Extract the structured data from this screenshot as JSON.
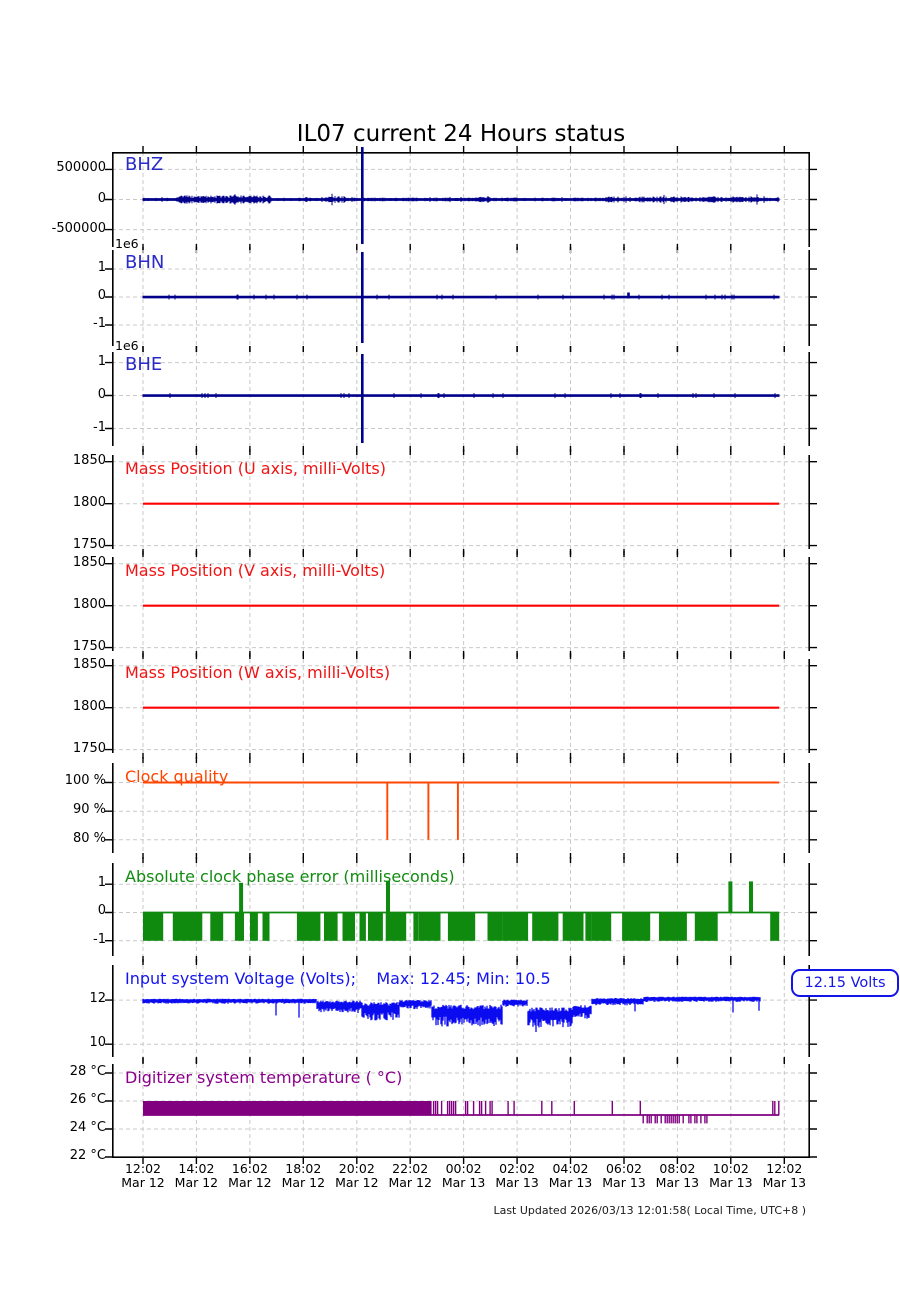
{
  "page": {
    "title": "IL07 current 24 Hours status",
    "footer": "Last Updated 2026/03/13 12:01:58( Local Time, UTC+8 )"
  },
  "badge": {
    "label": "12.15 Volts"
  },
  "chart_data": {
    "type": "line",
    "title": "IL07 current 24 Hours status",
    "station": "IL07",
    "time_span": {
      "start": "12:02 Mar 12",
      "end": "12:02 Mar 13",
      "hours": 24
    },
    "grid": true,
    "x_ticks": [
      {
        "time": "12:02",
        "date": "Mar 12"
      },
      {
        "time": "14:02",
        "date": "Mar 12"
      },
      {
        "time": "16:02",
        "date": "Mar 12"
      },
      {
        "time": "18:02",
        "date": "Mar 12"
      },
      {
        "time": "20:02",
        "date": "Mar 12"
      },
      {
        "time": "22:02",
        "date": "Mar 12"
      },
      {
        "time": "00:02",
        "date": "Mar 13"
      },
      {
        "time": "02:02",
        "date": "Mar 13"
      },
      {
        "time": "04:02",
        "date": "Mar 13"
      },
      {
        "time": "06:02",
        "date": "Mar 13"
      },
      {
        "time": "08:02",
        "date": "Mar 13"
      },
      {
        "time": "10:02",
        "date": "Mar 13"
      },
      {
        "time": "12:02",
        "date": "Mar 13"
      }
    ],
    "panels": [
      {
        "id": "bhz",
        "title": "BHZ",
        "title_color": "#2a2ac8",
        "color": "#00008b",
        "ylim": [
          -790000,
          790000
        ],
        "yticks": [
          {
            "v": 500000,
            "label": "500000"
          },
          {
            "v": 0,
            "label": "0"
          },
          {
            "v": -500000,
            "label": "-500000"
          }
        ],
        "series": {
          "kind": "seismic",
          "noise_amp": 22000,
          "thick_regions": [
            [
              0.05,
              0.2,
              48000
            ],
            [
              0.285,
              0.315,
              40000
            ],
            [
              0.52,
              0.545,
              34000
            ],
            [
              0.72,
              0.96,
              36000
            ]
          ],
          "spikes": [
            {
              "t": 0.342,
              "full": true
            }
          ]
        }
      },
      {
        "id": "bhn",
        "title": "BHN",
        "title_color": "#2a2ac8",
        "color": "#00008b",
        "offset_label": "1e6",
        "ylim": [
          -1750000,
          1680000
        ],
        "yticks": [
          {
            "v": 1000000,
            "label": "1"
          },
          {
            "v": 0,
            "label": "0"
          },
          {
            "v": -1000000,
            "label": "-1"
          }
        ],
        "series": {
          "kind": "seismic",
          "noise_amp": 26000,
          "thick_regions": [],
          "spikes": [
            {
              "t": 0.342,
              "full": true
            },
            {
              "t": 0.757,
              "amp": 160000
            }
          ]
        }
      },
      {
        "id": "bhe",
        "title": "BHE",
        "title_color": "#2a2ac8",
        "color": "#00008b",
        "offset_label": "1e6",
        "ylim": [
          -1530000,
          1320000
        ],
        "yticks": [
          {
            "v": 1000000,
            "label": "1"
          },
          {
            "v": 0,
            "label": "0"
          },
          {
            "v": -1000000,
            "label": "-1"
          }
        ],
        "series": {
          "kind": "seismic",
          "noise_amp": 24000,
          "thick_regions": [],
          "spikes": [
            {
              "t": 0.342,
              "full": true
            }
          ]
        }
      },
      {
        "id": "mass-u",
        "title": "Mass Position (U axis, milli-Volts)",
        "title_color": "#f01414",
        "color": "#ff0000",
        "ylim": [
          1746,
          1858
        ],
        "yticks": [
          {
            "v": 1850,
            "label": "1850"
          },
          {
            "v": 1800,
            "label": "1800"
          },
          {
            "v": 1750,
            "label": "1750"
          }
        ],
        "series": {
          "kind": "const",
          "value": 1800
        }
      },
      {
        "id": "mass-v",
        "title": "Mass Position (V axis, milli-Volts)",
        "title_color": "#f01414",
        "color": "#ff0000",
        "ylim": [
          1746,
          1858
        ],
        "yticks": [
          {
            "v": 1850,
            "label": "1850"
          },
          {
            "v": 1800,
            "label": "1800"
          },
          {
            "v": 1750,
            "label": "1750"
          }
        ],
        "series": {
          "kind": "const",
          "value": 1800
        }
      },
      {
        "id": "mass-w",
        "title": "Mass Position (W axis, milli-Volts)",
        "title_color": "#f01414",
        "color": "#ff0000",
        "ylim": [
          1746,
          1858
        ],
        "yticks": [
          {
            "v": 1850,
            "label": "1850"
          },
          {
            "v": 1800,
            "label": "1800"
          },
          {
            "v": 1750,
            "label": "1750"
          }
        ],
        "series": {
          "kind": "const",
          "value": 1800
        }
      },
      {
        "id": "clock-quality",
        "title": "Clock quality",
        "title_color": "#ff4500",
        "color": "#ff4500",
        "ylim": [
          75.4,
          106.8
        ],
        "yticks": [
          {
            "v": 100,
            "label": "100 %"
          },
          {
            "v": 90,
            "label": "90 %"
          },
          {
            "v": 80,
            "label": "80 %"
          }
        ],
        "series": {
          "kind": "clock",
          "value": 100,
          "drops": [
            {
              "t": 0.381,
              "to": 80
            },
            {
              "t": 0.445,
              "to": 80
            },
            {
              "t": 0.491,
              "to": 80
            }
          ]
        }
      },
      {
        "id": "clock-phase-error",
        "title": "Absolute clock phase error (milliseconds)",
        "title_color": "#108c10",
        "color": "#0f8a0f",
        "ylim": [
          -1.54,
          1.75
        ],
        "yticks": [
          {
            "v": 1,
            "label": "1"
          },
          {
            "v": 0,
            "label": "0"
          },
          {
            "v": -1,
            "label": "-1"
          }
        ],
        "series": {
          "kind": "phase",
          "hi": 0,
          "lo": -1,
          "segments": [
            {
              "t0": 0,
              "t1": 0.205,
              "fill": 0.68
            },
            {
              "t0": 0.205,
              "t1": 0.24,
              "fill": 0.12
            },
            {
              "t0": 0.24,
              "t1": 0.43,
              "fill": 0.8
            },
            {
              "t0": 0.43,
              "t1": 0.56,
              "fill": 0.62
            },
            {
              "t0": 0.56,
              "t1": 0.7,
              "fill": 0.85
            },
            {
              "t0": 0.7,
              "t1": 0.9,
              "fill": 0.7
            },
            {
              "t0": 0.9,
              "t1": 0.975,
              "fill": 0.12
            },
            {
              "t0": 0.978,
              "t1": 0.992,
              "fill": 1
            }
          ],
          "up_spikes": [
            {
              "t": 0.153,
              "v": 1.05
            },
            {
              "t": 0.382,
              "v": 1.12
            },
            {
              "t": 0.916,
              "v": 1.1
            },
            {
              "t": 0.948,
              "v": 1.1
            }
          ]
        }
      },
      {
        "id": "input-voltage",
        "title": "Input system Voltage (Volts);    Max: 12.45; Min: 10.5",
        "title_color": "#1414f0",
        "color": "#0b0bf0",
        "max": 12.45,
        "min": 10.5,
        "current": 12.15,
        "ylim": [
          9.42,
          13.59
        ],
        "yticks": [
          {
            "v": 12,
            "label": "12"
          },
          {
            "v": 10,
            "label": "10"
          }
        ],
        "series": {
          "kind": "noisy",
          "end_t": 0.963,
          "dip_chance": 0.014,
          "dip_depth": 0.45,
          "segments": [
            [
              0,
              0.27,
              11.97,
              0.09
            ],
            [
              0.27,
              0.34,
              11.78,
              0.33
            ],
            [
              0.34,
              0.4,
              11.62,
              0.5
            ],
            [
              0.4,
              0.45,
              11.85,
              0.22
            ],
            [
              0.45,
              0.56,
              11.45,
              0.6
            ],
            [
              0.56,
              0.6,
              11.9,
              0.16
            ],
            [
              0.6,
              0.67,
              11.35,
              0.55
            ],
            [
              0.67,
              0.7,
              11.55,
              0.35
            ],
            [
              0.7,
              0.78,
              11.97,
              0.16
            ],
            [
              0.78,
              0.963,
              12.06,
              0.1
            ]
          ]
        }
      },
      {
        "id": "digitizer-temperature",
        "title": "Digitizer system temperature ( °C)",
        "title_color": "#8b008b",
        "color": "#800080",
        "ylim": [
          21.93,
          28.64
        ],
        "yticks": [
          {
            "v": 28,
            "label": "28 °C"
          },
          {
            "v": 26,
            "label": "26 °C"
          },
          {
            "v": 24,
            "label": "24 °C"
          },
          {
            "v": 22,
            "label": "22 °C"
          }
        ],
        "series": {
          "kind": "temp",
          "base": 25,
          "end_t": 0.992,
          "segments": [
            [
              0,
              0.45,
              26,
              1
            ],
            [
              0.45,
              0.535,
              26,
              0.5
            ],
            [
              0.535,
              0.6,
              26,
              0.22
            ],
            [
              0.6,
              0.66,
              26,
              0.07
            ],
            [
              0.66,
              0.78,
              26,
              0.018
            ],
            [
              0.78,
              0.845,
              24.4,
              0.6
            ],
            [
              0.845,
              0.88,
              24.4,
              0.35
            ],
            [
              0.88,
              0.982,
              25,
              0
            ],
            [
              0.982,
              0.992,
              26,
              0.6
            ]
          ]
        }
      }
    ]
  }
}
